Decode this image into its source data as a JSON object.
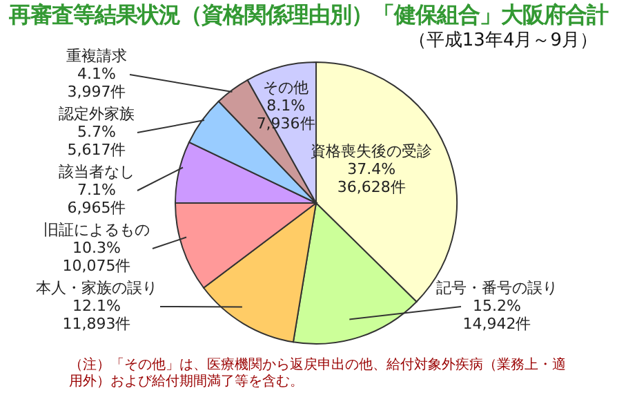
{
  "chart_data": {
    "type": "pie",
    "title": "再審査等結果状況（資格関係理由別）「健保組合」大阪府合計",
    "subtitle": "（平成13年4月～9月）",
    "categories": [
      "資格喪失後の受診",
      "記号・番号の誤り",
      "本人・家族の誤り",
      "旧証によるもの",
      "該当者なし",
      "認定外家族",
      "重複請求",
      "その他"
    ],
    "values": [
      36628,
      14942,
      11893,
      10075,
      6965,
      5617,
      3997,
      7936
    ],
    "colors": [
      "#ffffcc",
      "#ccff99",
      "#ffcc66",
      "#ff9999",
      "#cc99ff",
      "#99ccff",
      "#cc9999",
      "#ccccff"
    ],
    "value_labels": [
      "37.4%\n36,628件",
      "15.2%\n14,942件",
      "12.1%\n11,893件",
      "10.3%\n10,075件",
      "7.1%\n6,965件",
      "5.7%\n5,617件",
      "4.1%\n3,997件",
      "8.1%\n7,936件"
    ],
    "annotations": [
      "（注）「その他」は、医療機関から返戻申出の他、給付対象外疾病（業務上・適用外）および給付期間満了等を含む。"
    ]
  }
}
